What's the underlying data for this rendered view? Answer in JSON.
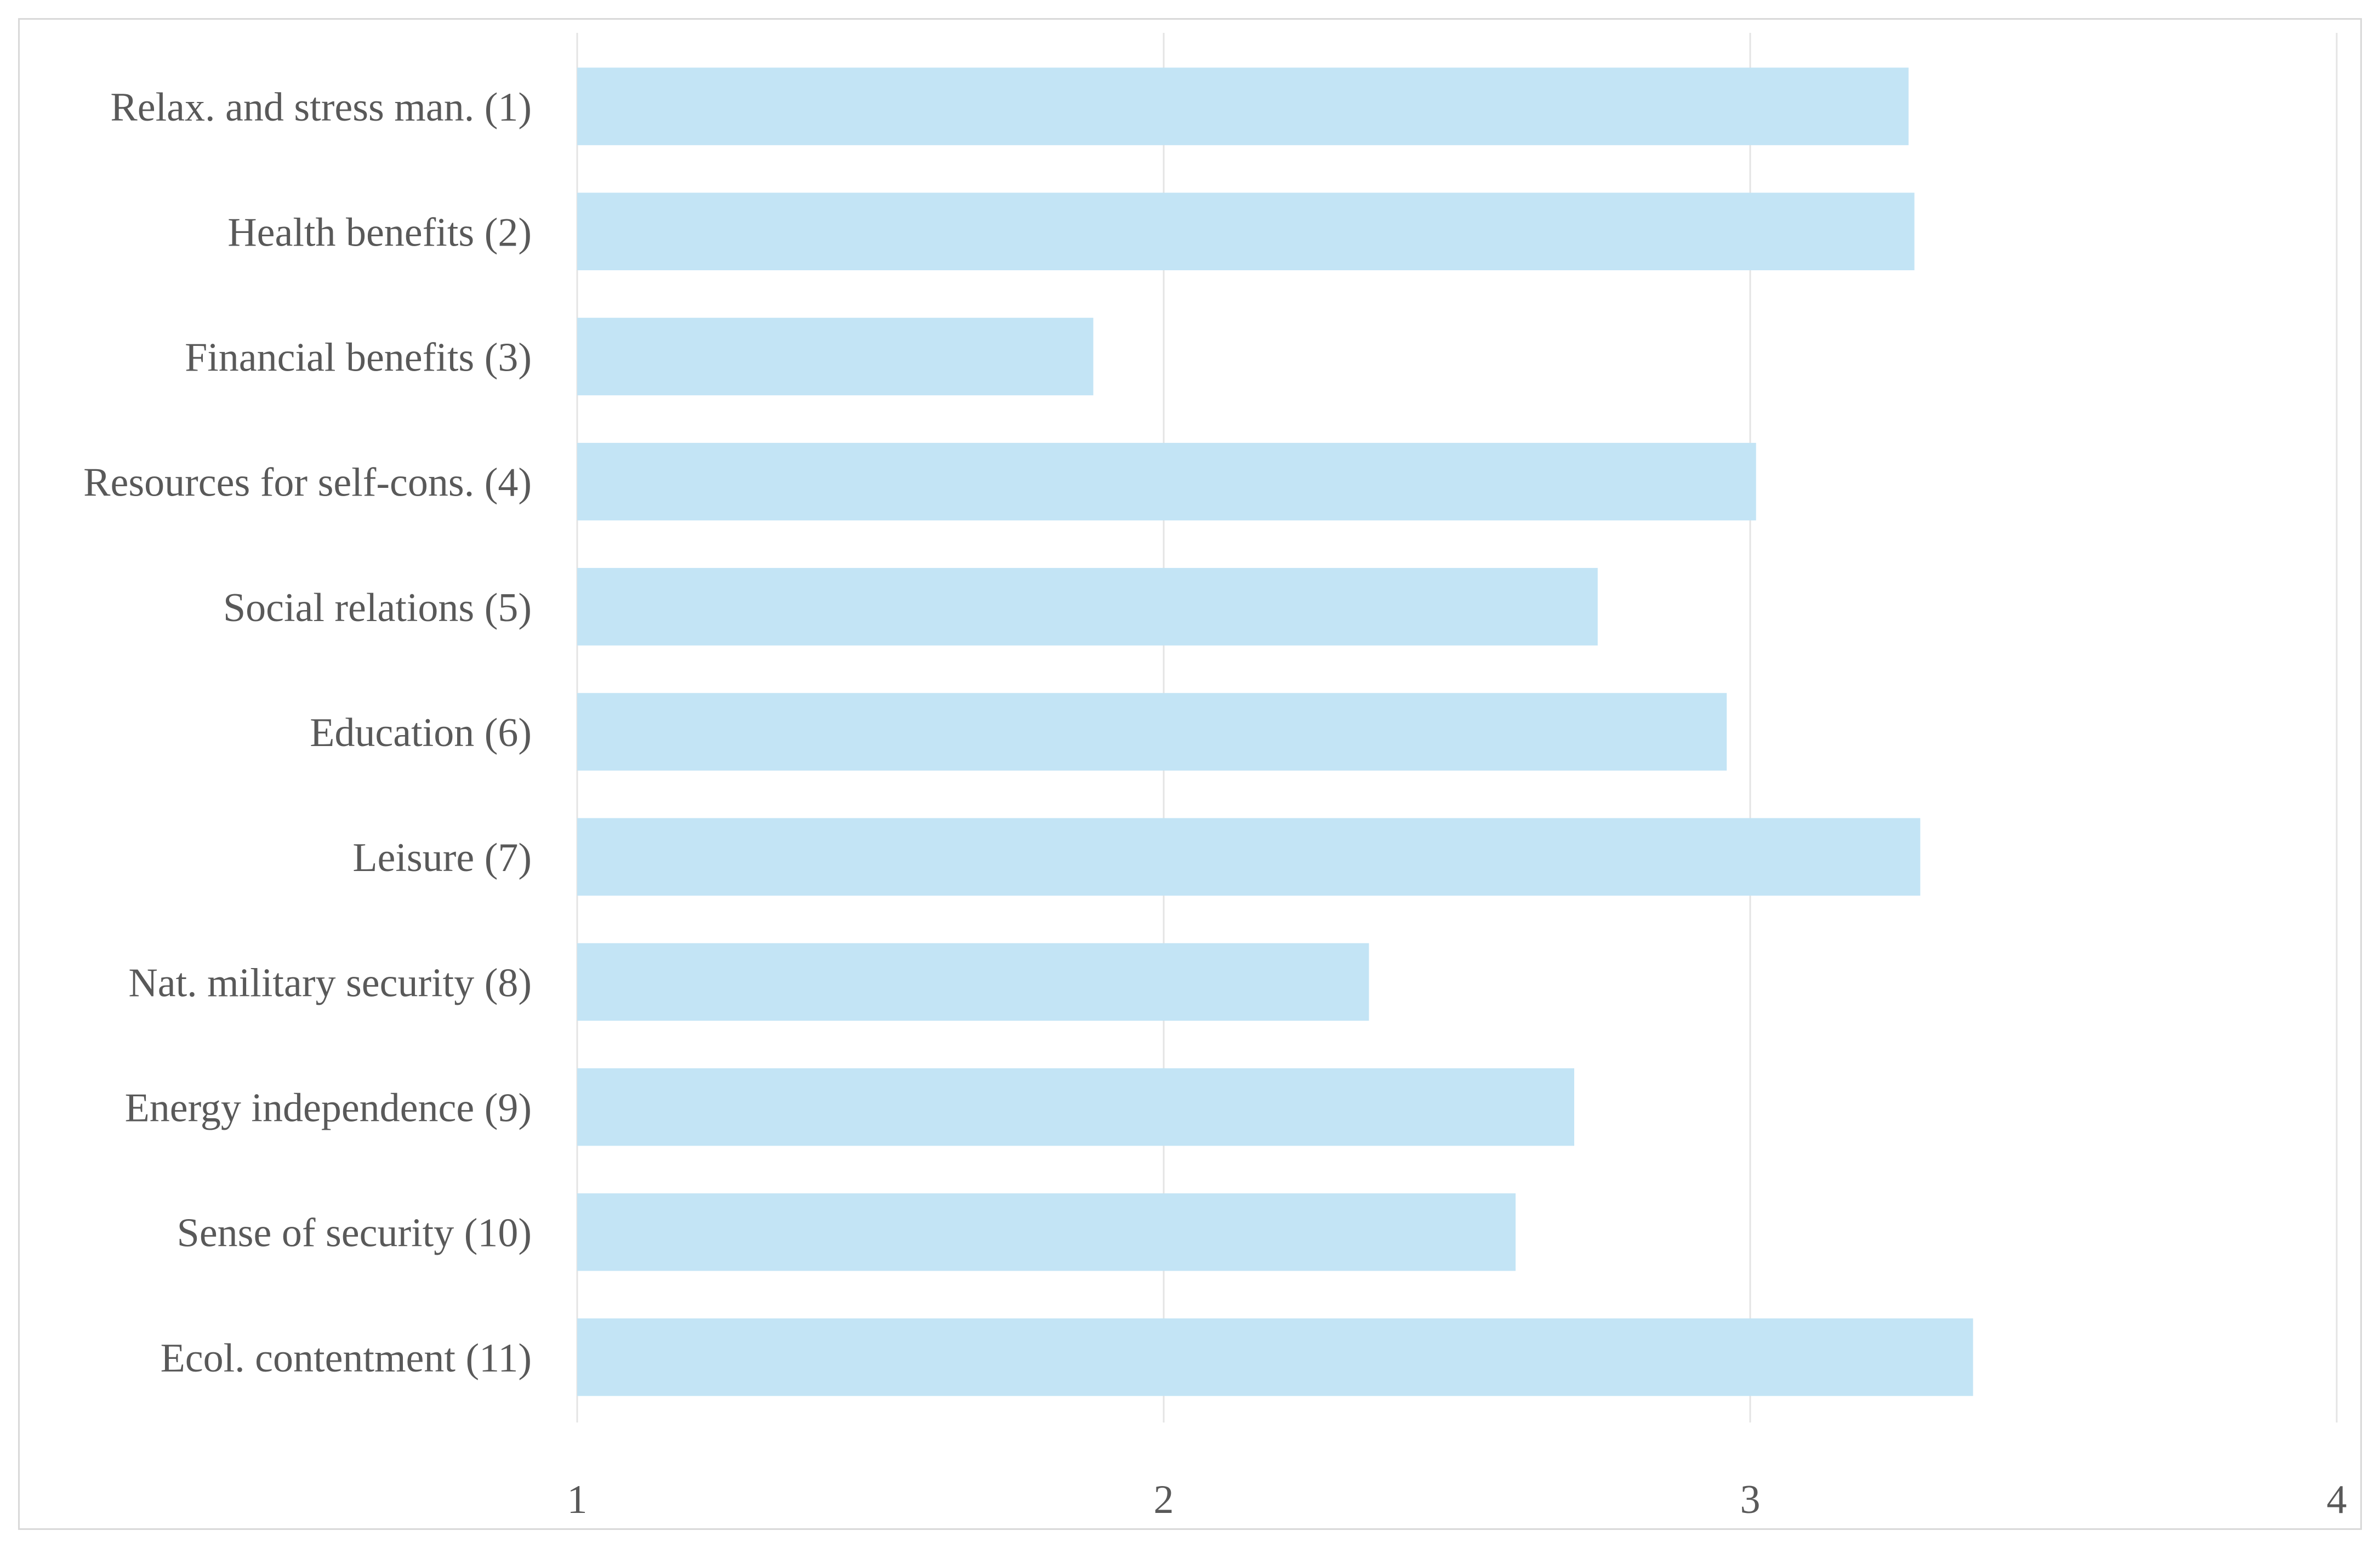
{
  "chart_data": {
    "type": "bar",
    "orientation": "horizontal",
    "categories": [
      "Relax. and stress man. (1)",
      "Health benefits (2)",
      "Financial benefits (3)",
      "Resources for self-cons. (4)",
      "Social relations (5)",
      "Education (6)",
      "Leisure (7)",
      "Nat. military security (8)",
      "Energy independence (9)",
      "Sense of security (10)",
      "Ecol. contentment (11)"
    ],
    "values": [
      3.27,
      3.28,
      1.88,
      3.01,
      2.74,
      2.96,
      3.29,
      2.35,
      2.7,
      2.6,
      3.38
    ],
    "xlim": [
      1,
      4
    ],
    "xticks": [
      "1",
      "2",
      "3",
      "4"
    ],
    "grid": true,
    "legend": "none",
    "colors": {
      "bar": "#c3e4f5",
      "grid": "#e4e4e4",
      "text": "#595959",
      "frame": "#d9d9d9"
    }
  }
}
